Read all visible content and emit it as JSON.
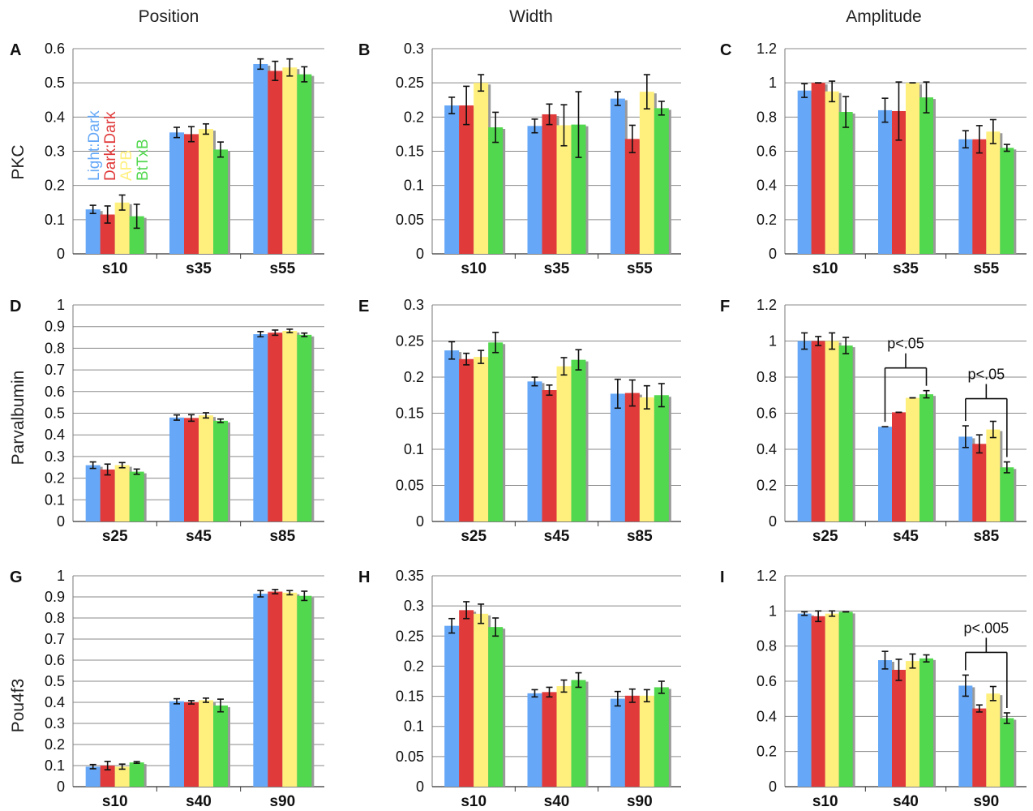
{
  "column_headers": [
    "Position",
    "Width",
    "Amplitude"
  ],
  "row_labels": [
    "PKC",
    "Parvalbumin",
    "Pou4f3"
  ],
  "series_colors": {
    "Light:Dark": "#66a8f7",
    "Dark:Dark": "#e03a3a",
    "APB": "#fff07e",
    "BtTxB": "#52d84e"
  },
  "legend": [
    {
      "name": "Light:Dark",
      "color": "#66a8f7"
    },
    {
      "name": "Dark:Dark",
      "color": "#e03a3a"
    },
    {
      "name": "APB",
      "color": "#fff07e"
    },
    {
      "name": "BtTxB",
      "color": "#52d84e"
    }
  ],
  "chart_data": [
    {
      "panel": "A",
      "type": "bar",
      "title": "",
      "xlabel": "",
      "ylabel": "",
      "ylim": [
        0,
        0.6
      ],
      "yticks": [
        0,
        0.1,
        0.2,
        0.3,
        0.4,
        0.5,
        0.6
      ],
      "categories": [
        "s10",
        "s35",
        "s55"
      ],
      "series": [
        {
          "name": "Light:Dark",
          "values": [
            0.13,
            0.355,
            0.555
          ],
          "errors": [
            0.012,
            0.015,
            0.015
          ]
        },
        {
          "name": "Dark:Dark",
          "values": [
            0.115,
            0.35,
            0.535
          ],
          "errors": [
            0.025,
            0.022,
            0.028
          ]
        },
        {
          "name": "APB",
          "values": [
            0.15,
            0.365,
            0.545
          ],
          "errors": [
            0.022,
            0.015,
            0.025
          ]
        },
        {
          "name": "BtTxB",
          "values": [
            0.11,
            0.305,
            0.525
          ],
          "errors": [
            0.035,
            0.022,
            0.022
          ]
        }
      ]
    },
    {
      "panel": "B",
      "type": "bar",
      "title": "",
      "xlabel": "",
      "ylabel": "",
      "ylim": [
        0,
        0.3
      ],
      "yticks": [
        0,
        0.05,
        0.1,
        0.15,
        0.2,
        0.25,
        0.3
      ],
      "categories": [
        "s10",
        "s35",
        "s55"
      ],
      "series": [
        {
          "name": "Light:Dark",
          "values": [
            0.217,
            0.187,
            0.227
          ],
          "errors": [
            0.012,
            0.01,
            0.01
          ]
        },
        {
          "name": "Dark:Dark",
          "values": [
            0.217,
            0.204,
            0.168
          ],
          "errors": [
            0.028,
            0.015,
            0.02
          ]
        },
        {
          "name": "APB",
          "values": [
            0.25,
            0.188,
            0.237
          ],
          "errors": [
            0.012,
            0.03,
            0.025
          ]
        },
        {
          "name": "BtTxB",
          "values": [
            0.185,
            0.189,
            0.213
          ],
          "errors": [
            0.022,
            0.048,
            0.01
          ]
        }
      ]
    },
    {
      "panel": "C",
      "type": "bar",
      "title": "",
      "xlabel": "",
      "ylabel": "",
      "ylim": [
        0,
        1.2
      ],
      "yticks": [
        0,
        0.2,
        0.4,
        0.6,
        0.8,
        1,
        1.2
      ],
      "categories": [
        "s10",
        "s35",
        "s55"
      ],
      "series": [
        {
          "name": "Light:Dark",
          "values": [
            0.955,
            0.84,
            0.67
          ],
          "errors": [
            0.04,
            0.07,
            0.05
          ]
        },
        {
          "name": "Dark:Dark",
          "values": [
            1.0,
            0.835,
            0.67
          ],
          "errors": [
            0.0,
            0.17,
            0.08
          ]
        },
        {
          "name": "APB",
          "values": [
            0.95,
            1.0,
            0.715
          ],
          "errors": [
            0.06,
            0.0,
            0.07
          ]
        },
        {
          "name": "BtTxB",
          "values": [
            0.83,
            0.915,
            0.62
          ],
          "errors": [
            0.09,
            0.09,
            0.02
          ]
        }
      ]
    },
    {
      "panel": "D",
      "type": "bar",
      "title": "",
      "xlabel": "",
      "ylabel": "",
      "ylim": [
        0,
        1
      ],
      "yticks": [
        0,
        0.1,
        0.2,
        0.3,
        0.4,
        0.5,
        0.6,
        0.7,
        0.8,
        0.9,
        1
      ],
      "categories": [
        "s25",
        "s45",
        "s85"
      ],
      "series": [
        {
          "name": "Light:Dark",
          "values": [
            0.26,
            0.48,
            0.865
          ],
          "errors": [
            0.015,
            0.012,
            0.012
          ]
        },
        {
          "name": "Dark:Dark",
          "values": [
            0.24,
            0.478,
            0.872
          ],
          "errors": [
            0.025,
            0.015,
            0.012
          ]
        },
        {
          "name": "APB",
          "values": [
            0.26,
            0.49,
            0.88
          ],
          "errors": [
            0.012,
            0.012,
            0.008
          ]
        },
        {
          "name": "BtTxB",
          "values": [
            0.23,
            0.465,
            0.862
          ],
          "errors": [
            0.012,
            0.008,
            0.008
          ]
        }
      ]
    },
    {
      "panel": "E",
      "type": "bar",
      "title": "",
      "xlabel": "",
      "ylabel": "",
      "ylim": [
        0,
        0.3
      ],
      "yticks": [
        0,
        0.05,
        0.1,
        0.15,
        0.2,
        0.25,
        0.3
      ],
      "categories": [
        "s25",
        "s45",
        "s85"
      ],
      "series": [
        {
          "name": "Light:Dark",
          "values": [
            0.237,
            0.194,
            0.177
          ],
          "errors": [
            0.012,
            0.006,
            0.02
          ]
        },
        {
          "name": "Dark:Dark",
          "values": [
            0.225,
            0.182,
            0.178
          ],
          "errors": [
            0.008,
            0.007,
            0.018
          ]
        },
        {
          "name": "APB",
          "values": [
            0.228,
            0.215,
            0.172
          ],
          "errors": [
            0.009,
            0.012,
            0.016
          ]
        },
        {
          "name": "BtTxB",
          "values": [
            0.248,
            0.224,
            0.175
          ],
          "errors": [
            0.014,
            0.014,
            0.016
          ]
        }
      ]
    },
    {
      "panel": "F",
      "type": "bar",
      "title": "",
      "xlabel": "",
      "ylabel": "",
      "ylim": [
        0,
        1.2
      ],
      "yticks": [
        0,
        0.2,
        0.4,
        0.6,
        0.8,
        1,
        1.2
      ],
      "categories": [
        "s25",
        "s45",
        "s85"
      ],
      "series": [
        {
          "name": "Light:Dark",
          "values": [
            1.0,
            0.525,
            0.47
          ],
          "errors": [
            0.045,
            0.0,
            0.06
          ]
        },
        {
          "name": "Dark:Dark",
          "values": [
            1.0,
            0.605,
            0.43
          ],
          "errors": [
            0.025,
            0.0,
            0.05
          ]
        },
        {
          "name": "APB",
          "values": [
            1.0,
            0.685,
            0.51
          ],
          "errors": [
            0.045,
            0.0,
            0.045
          ]
        },
        {
          "name": "BtTxB",
          "values": [
            0.975,
            0.705,
            0.3
          ],
          "errors": [
            0.045,
            0.02,
            0.03
          ]
        }
      ],
      "annotations": [
        {
          "text": "p<.05",
          "category": "s45"
        },
        {
          "text": "p<.05",
          "category": "s85"
        }
      ]
    },
    {
      "panel": "G",
      "type": "bar",
      "title": "",
      "xlabel": "",
      "ylabel": "",
      "ylim": [
        0,
        1
      ],
      "yticks": [
        0,
        0.1,
        0.2,
        0.3,
        0.4,
        0.5,
        0.6,
        0.7,
        0.8,
        0.9,
        1
      ],
      "categories": [
        "s10",
        "s40",
        "s90"
      ],
      "series": [
        {
          "name": "Light:Dark",
          "values": [
            0.095,
            0.405,
            0.915
          ],
          "errors": [
            0.01,
            0.012,
            0.015
          ]
        },
        {
          "name": "Dark:Dark",
          "values": [
            0.1,
            0.4,
            0.925
          ],
          "errors": [
            0.02,
            0.008,
            0.01
          ]
        },
        {
          "name": "APB",
          "values": [
            0.095,
            0.41,
            0.92
          ],
          "errors": [
            0.012,
            0.01,
            0.01
          ]
        },
        {
          "name": "BtTxB",
          "values": [
            0.115,
            0.385,
            0.905
          ],
          "errors": [
            0.004,
            0.03,
            0.022
          ]
        }
      ]
    },
    {
      "panel": "H",
      "type": "bar",
      "title": "",
      "xlabel": "",
      "ylabel": "",
      "ylim": [
        0,
        0.35
      ],
      "yticks": [
        0,
        0.05,
        0.1,
        0.15,
        0.2,
        0.25,
        0.3,
        0.35
      ],
      "categories": [
        "s10",
        "s40",
        "s90"
      ],
      "series": [
        {
          "name": "Light:Dark",
          "values": [
            0.267,
            0.155,
            0.146
          ],
          "errors": [
            0.012,
            0.006,
            0.012
          ]
        },
        {
          "name": "Dark:Dark",
          "values": [
            0.293,
            0.157,
            0.151
          ],
          "errors": [
            0.014,
            0.008,
            0.011
          ]
        },
        {
          "name": "APB",
          "values": [
            0.287,
            0.167,
            0.151
          ],
          "errors": [
            0.016,
            0.01,
            0.01
          ]
        },
        {
          "name": "BtTxB",
          "values": [
            0.265,
            0.177,
            0.165
          ],
          "errors": [
            0.015,
            0.012,
            0.01
          ]
        }
      ]
    },
    {
      "panel": "I",
      "type": "bar",
      "title": "",
      "xlabel": "",
      "ylabel": "",
      "ylim": [
        0,
        1.2
      ],
      "yticks": [
        0,
        0.2,
        0.4,
        0.6,
        0.8,
        1,
        1.2
      ],
      "categories": [
        "s10",
        "s40",
        "s90"
      ],
      "series": [
        {
          "name": "Light:Dark",
          "values": [
            0.985,
            0.72,
            0.575
          ],
          "errors": [
            0.01,
            0.05,
            0.06
          ]
        },
        {
          "name": "Dark:Dark",
          "values": [
            0.97,
            0.665,
            0.445
          ],
          "errors": [
            0.03,
            0.06,
            0.02
          ]
        },
        {
          "name": "APB",
          "values": [
            0.985,
            0.715,
            0.53
          ],
          "errors": [
            0.015,
            0.04,
            0.04
          ]
        },
        {
          "name": "BtTxB",
          "values": [
            0.995,
            0.73,
            0.39
          ],
          "errors": [
            0.0,
            0.02,
            0.03
          ]
        }
      ],
      "annotations": [
        {
          "text": "p<.005",
          "category": "s90"
        }
      ]
    }
  ]
}
